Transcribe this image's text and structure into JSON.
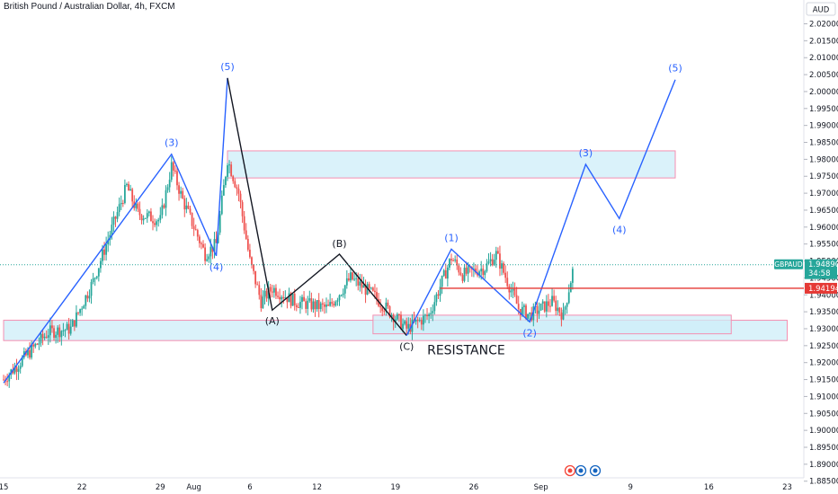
{
  "chart_data": {
    "type": "candlestick",
    "title": "British Pound / Australian Dollar, 4h, FXCM",
    "currency": "AUD",
    "symbol": "GBPAUD",
    "last_price": "1.94890",
    "countdown": "34:58",
    "line_price": "1.94194",
    "annotation": "RESISTANCE",
    "ylim": [
      1.885,
      2.025
    ],
    "y_ticks": [
      "2.02000",
      "2.01500",
      "2.01000",
      "2.00500",
      "2.00000",
      "1.99500",
      "1.99000",
      "1.98500",
      "1.98000",
      "1.97500",
      "1.97000",
      "1.96500",
      "1.96000",
      "1.95500",
      "1.95000",
      "1.94500",
      "1.94000",
      "1.93500",
      "1.93000",
      "1.92500",
      "1.92000",
      "1.91500",
      "1.91000",
      "1.90500",
      "1.90000",
      "1.89500",
      "1.89000",
      "1.88500"
    ],
    "x_ticks": [
      "15",
      "22",
      "29",
      "Aug",
      "6",
      "12",
      "19",
      "26",
      "Sep",
      "9",
      "16",
      "23"
    ],
    "colors": {
      "up": "#26a69a",
      "down": "#ef5350",
      "wave": "#2962ff",
      "zone_fill": "#cdeef8",
      "zone_border": "#f48fb1",
      "line": "#e53935"
    },
    "zones": [
      {
        "from": "Aug 4",
        "to": "Sep 13",
        "low": 1.9745,
        "high": 1.9825
      },
      {
        "from": "Jul 15",
        "to": "Sep 23",
        "low": 1.9265,
        "high": 1.9325
      },
      {
        "from": "Aug 17",
        "to": "Sep 18",
        "low": 1.9285,
        "high": 1.934
      }
    ],
    "primary_waves": [
      {
        "label": "(3)",
        "date": "Jul 30",
        "price": 1.9815
      },
      {
        "label": "(4)",
        "date": "Aug 3",
        "price": 1.9515
      },
      {
        "label": "(5)",
        "date": "Aug 4",
        "price": 2.004
      }
    ],
    "correction_waves": [
      {
        "label": "(A)",
        "date": "Aug 8",
        "price": 1.9355
      },
      {
        "label": "(B)",
        "date": "Aug 14",
        "price": 1.952
      },
      {
        "label": "(C)",
        "date": "Aug 20",
        "price": 1.928
      }
    ],
    "new_waves": [
      {
        "label": "(1)",
        "date": "Aug 24",
        "price": 1.9535
      },
      {
        "label": "(2)",
        "date": "Aug 31",
        "price": 1.932
      },
      {
        "label": "(3)",
        "date": "Sep 5",
        "price": 1.9785
      },
      {
        "label": "(4)",
        "date": "Sep 8",
        "price": 1.9625
      },
      {
        "label": "(5)",
        "date": "Sep 13",
        "price": 2.0035
      }
    ]
  }
}
